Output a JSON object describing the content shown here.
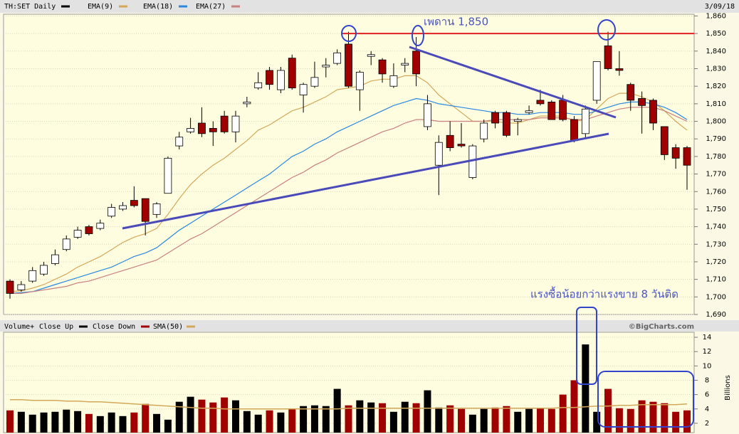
{
  "chart_data": [
    {
      "type": "candlestick",
      "title": "TH:SET Daily",
      "date": "3/09/18",
      "open": [
        1709,
        1704,
        1709,
        1713,
        1719,
        1727,
        1734,
        1740,
        1739,
        1746,
        1750,
        1755,
        1756,
        1747,
        1759,
        1786,
        1794,
        1799,
        1796,
        1803,
        1794,
        1810,
        1819,
        1829,
        1818,
        1836,
        1815,
        1820,
        1831,
        1833,
        1844,
        1818,
        1837,
        1835,
        1820,
        1832,
        1840,
        1797,
        1775,
        1792,
        1787,
        1768,
        1790,
        1805,
        1805,
        1800,
        1805,
        1812,
        1811,
        1812,
        1801,
        1793,
        1812,
        1843,
        1830,
        1821,
        1813,
        1812,
        1797,
        1785,
        1785
      ],
      "high": [
        1710,
        1709,
        1717,
        1720,
        1727,
        1735,
        1740,
        1741,
        1744,
        1753,
        1754,
        1763,
        1756,
        1754,
        1780,
        1794,
        1802,
        1808,
        1800,
        1806,
        1806,
        1814,
        1828,
        1831,
        1831,
        1838,
        1822,
        1834,
        1836,
        1841,
        1851,
        1829,
        1840,
        1836,
        1833,
        1836,
        1848,
        1815,
        1792,
        1800,
        1799,
        1787,
        1801,
        1806,
        1806,
        1802,
        1809,
        1818,
        1812,
        1815,
        1803,
        1809,
        1834,
        1851,
        1840,
        1822,
        1817,
        1813,
        1797,
        1787,
        1786
      ],
      "low": [
        1699,
        1703,
        1708,
        1712,
        1718,
        1726,
        1733,
        1735,
        1738,
        1745,
        1749,
        1751,
        1735,
        1745,
        1759,
        1784,
        1793,
        1791,
        1786,
        1793,
        1788,
        1808,
        1818,
        1818,
        1816,
        1818,
        1805,
        1819,
        1825,
        1832,
        1819,
        1806,
        1832,
        1822,
        1819,
        1828,
        1820,
        1795,
        1758,
        1783,
        1785,
        1767,
        1788,
        1796,
        1791,
        1792,
        1804,
        1809,
        1801,
        1800,
        1788,
        1790,
        1810,
        1829,
        1826,
        1806,
        1793,
        1795,
        1778,
        1773,
        1761
      ],
      "close": [
        1702,
        1707,
        1715,
        1718,
        1724,
        1733,
        1738,
        1736,
        1742,
        1751,
        1752,
        1752,
        1743,
        1753,
        1779,
        1791,
        1796,
        1793,
        1794,
        1794,
        1803,
        1811,
        1822,
        1821,
        1829,
        1819,
        1821,
        1825,
        1832,
        1839,
        1820,
        1828,
        1838,
        1827,
        1826,
        1833,
        1827,
        1810,
        1788,
        1785,
        1786,
        1786,
        1799,
        1799,
        1792,
        1801,
        1806,
        1810,
        1801,
        1801,
        1789,
        1807,
        1834,
        1830,
        1829,
        1812,
        1809,
        1799,
        1781,
        1779,
        1775
      ],
      "up_color": "#ffffff",
      "down_color": "#a00000",
      "series": [
        {
          "name": "EMA(9)",
          "color": "#d4a85a",
          "values": [
            1703,
            1703.5,
            1705,
            1707,
            1710,
            1713,
            1717,
            1720,
            1723,
            1727,
            1731,
            1734,
            1736,
            1739,
            1747,
            1756,
            1764,
            1770,
            1775,
            1779,
            1784,
            1789,
            1795,
            1798,
            1802,
            1806,
            1808,
            1811,
            1814,
            1818,
            1819,
            1820,
            1823,
            1824,
            1824,
            1826,
            1826,
            1822,
            1815,
            1810,
            1805,
            1800,
            1800,
            1800,
            1799,
            1799,
            1801,
            1803,
            1803,
            1803,
            1800,
            1801,
            1807,
            1813,
            1816,
            1816,
            1814,
            1811,
            1806,
            1800,
            1795
          ]
        },
        {
          "name": "EMA(18)",
          "color": "#2a88e0",
          "values": [
            1702,
            1702.5,
            1703,
            1705,
            1707,
            1709,
            1711,
            1713,
            1715,
            1717,
            1720,
            1723,
            1725,
            1728,
            1733,
            1738,
            1742,
            1746,
            1750,
            1754,
            1758,
            1762,
            1766,
            1770,
            1775,
            1780,
            1783,
            1787,
            1790,
            1794,
            1797,
            1800,
            1803,
            1806,
            1809,
            1811,
            1813,
            1812,
            1810,
            1809,
            1808,
            1807,
            1806,
            1805,
            1805,
            1804,
            1804,
            1805,
            1805,
            1805,
            1804,
            1804,
            1806,
            1808,
            1810,
            1811,
            1811,
            1810,
            1808,
            1805,
            1801
          ]
        },
        {
          "name": "EMA(27)",
          "color": "#c88080",
          "values": [
            1702,
            1702,
            1703,
            1704,
            1705,
            1706,
            1708,
            1709,
            1711,
            1713,
            1715,
            1717,
            1719,
            1721,
            1725,
            1729,
            1733,
            1736,
            1740,
            1744,
            1748,
            1752,
            1756,
            1760,
            1764,
            1768,
            1771,
            1775,
            1778,
            1782,
            1785,
            1788,
            1791,
            1794,
            1796,
            1799,
            1801,
            1801,
            1800,
            1800,
            1800,
            1800,
            1800,
            1801,
            1801,
            1801,
            1801,
            1802,
            1802,
            1802,
            1801,
            1801,
            1803,
            1805,
            1807,
            1808,
            1808,
            1808,
            1806,
            1803,
            1800
          ]
        }
      ],
      "ylim": [
        1690,
        1861
      ],
      "yticks": [
        {
          "value": 1690,
          "label": "1,690"
        },
        {
          "value": 1700,
          "label": "1,700"
        },
        {
          "value": 1710,
          "label": "1,710"
        },
        {
          "value": 1720,
          "label": "1,720"
        },
        {
          "value": 1730,
          "label": "1,730"
        },
        {
          "value": 1740,
          "label": "1,740"
        },
        {
          "value": 1750,
          "label": "1,750"
        },
        {
          "value": 1760,
          "label": "1,760"
        },
        {
          "value": 1770,
          "label": "1,770"
        },
        {
          "value": 1780,
          "label": "1,780"
        },
        {
          "value": 1790,
          "label": "1,790"
        },
        {
          "value": 1800,
          "label": "1,800"
        },
        {
          "value": 1810,
          "label": "1,810"
        },
        {
          "value": 1820,
          "label": "1,820"
        },
        {
          "value": 1830,
          "label": "1,830"
        },
        {
          "value": 1840,
          "label": "1,840"
        },
        {
          "value": 1850,
          "label": "1,850"
        },
        {
          "value": 1860,
          "label": "1,860"
        }
      ],
      "grid": true,
      "annotations": [
        {
          "text": "เพดาน 1,850",
          "value": 1850,
          "color": "#e02020"
        },
        {
          "text": "แรงซื้อน้อยกว่าแรงขาย 8 วันติด"
        }
      ]
    },
    {
      "type": "bar",
      "title": "Volume+",
      "y_label": "Billions",
      "credit": "©BigCharts.com",
      "series": [
        {
          "name": "Close Up",
          "color": "#000000"
        },
        {
          "name": "Close Down",
          "color": "#a00000"
        }
      ],
      "values": [
        3.8,
        3.6,
        3.2,
        3.5,
        3.6,
        3.9,
        3.7,
        3.3,
        3.0,
        3.5,
        3.0,
        3.5,
        4.7,
        3.3,
        2.5,
        5.0,
        5.7,
        5.3,
        4.9,
        5.6,
        5.2,
        3.7,
        3.2,
        3.8,
        3.5,
        4.0,
        4.4,
        4.5,
        4.4,
        6.8,
        4.5,
        5.2,
        4.9,
        4.8,
        3.6,
        5.0,
        4.8,
        6.6,
        4.2,
        4.5,
        4.0,
        3.2,
        4.0,
        4.2,
        4.4,
        3.6,
        4.0,
        4.1,
        4.0,
        6.0,
        8.0,
        13.0,
        3.6,
        6.8,
        4.1,
        4.0,
        5.2,
        5.0,
        4.8,
        3.6,
        3.8
      ],
      "line": {
        "name": "SMA(50)",
        "color": "#d4a85a",
        "values": [
          5.3,
          5.3,
          5.2,
          5.2,
          5.2,
          5.1,
          5.1,
          5.0,
          5.0,
          4.9,
          4.8,
          4.7,
          4.6,
          4.5,
          4.4,
          4.3,
          4.2,
          4.1,
          4.1,
          4.0,
          4.0,
          4.0,
          4.0,
          4.0,
          4.0,
          4.0,
          4.0,
          4.0,
          4.0,
          4.0,
          4.1,
          4.1,
          4.1,
          4.1,
          4.1,
          4.1,
          4.1,
          4.1,
          4.1,
          4.1,
          4.1,
          4.1,
          4.1,
          4.1,
          4.1,
          4.1,
          4.1,
          4.1,
          4.1,
          4.2,
          4.2,
          4.3,
          4.4,
          4.4,
          4.5,
          4.5,
          4.6,
          4.6,
          4.6,
          4.6,
          4.7
        ]
      },
      "ylim": [
        0.7,
        14.7
      ],
      "yticks": [
        2,
        4,
        6,
        8,
        10,
        12,
        14
      ]
    }
  ]
}
